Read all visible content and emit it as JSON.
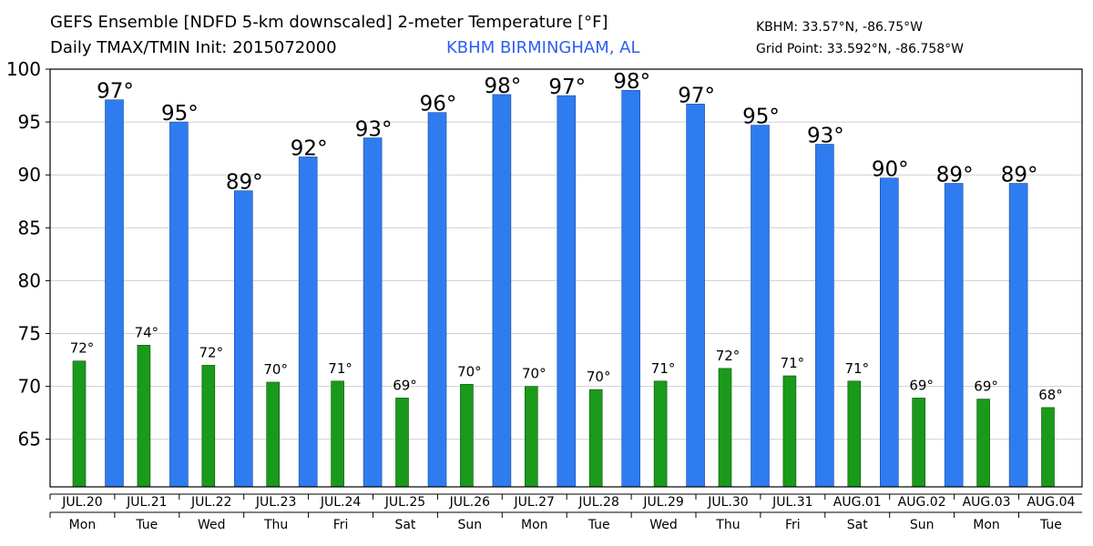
{
  "header": {
    "title_line1": "GEFS Ensemble [NDFD 5-km downscaled] 2-meter Temperature [°F]",
    "title_line2": "Daily TMAX/TMIN Init: 2015072000",
    "station": "KBHM BIRMINGHAM, AL",
    "station_coords": "KBHM: 33.57°N, -86.75°W",
    "grid_point": "Grid Point: 33.592°N, -86.758°W"
  },
  "colors": {
    "tmax": "#2e7cf0",
    "tmin": "#1a9a1a",
    "station_text": "#2e5ef0"
  },
  "chart_data": {
    "type": "bar",
    "dates": [
      "JUL.20",
      "JUL.21",
      "JUL.22",
      "JUL.23",
      "JUL.24",
      "JUL.25",
      "JUL.26",
      "JUL.27",
      "JUL.28",
      "JUL.29",
      "JUL.30",
      "JUL.31",
      "AUG.01",
      "AUG.02",
      "AUG.03",
      "AUG.04"
    ],
    "weekdays": [
      "Mon",
      "Tue",
      "Wed",
      "Thu",
      "Fri",
      "Sat",
      "Sun",
      "Mon",
      "Tue",
      "Wed",
      "Thu",
      "Fri",
      "Sat",
      "Sun",
      "Mon",
      "Tue"
    ],
    "yticks": [
      65,
      70,
      75,
      80,
      85,
      90,
      95,
      100
    ],
    "ylim": [
      60.5,
      100
    ],
    "tmin_values": [
      72.4,
      73.9,
      72.0,
      70.4,
      70.5,
      68.9,
      70.2,
      70.0,
      69.7,
      70.5,
      71.7,
      71.0,
      70.5,
      68.9,
      68.8,
      68.0
    ],
    "tmin_labels": [
      "72°",
      "74°",
      "72°",
      "70°",
      "71°",
      "69°",
      "70°",
      "70°",
      "70°",
      "71°",
      "72°",
      "71°",
      "71°",
      "69°",
      "69°",
      "68°"
    ],
    "tmax_values": [
      97.1,
      95.0,
      88.5,
      91.7,
      93.5,
      95.9,
      97.6,
      97.5,
      98.0,
      96.7,
      94.7,
      92.9,
      89.7,
      89.2,
      89.2
    ],
    "tmax_labels": [
      "97°",
      "95°",
      "89°",
      "92°",
      "93°",
      "96°",
      "98°",
      "97°",
      "98°",
      "97°",
      "95°",
      "93°",
      "90°",
      "89°",
      "89°"
    ]
  }
}
